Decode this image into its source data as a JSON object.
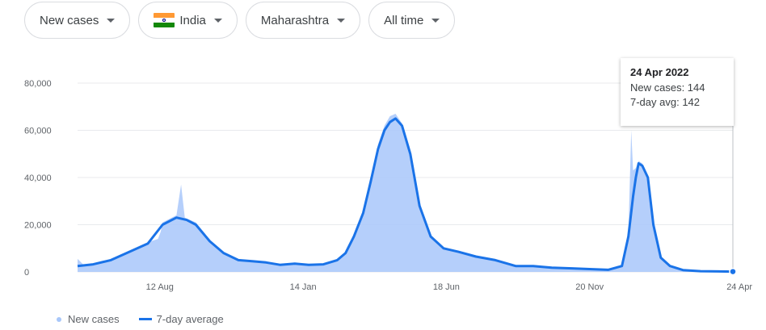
{
  "filters": {
    "metric": "New cases",
    "country": "India",
    "region": "Maharashtra",
    "period": "All time"
  },
  "colors": {
    "area": "#a8c7fa",
    "line": "#1a73e8",
    "grid": "#e8eaed",
    "axis_text": "#5f6368"
  },
  "tooltip": {
    "date": "24 Apr 2022",
    "new_cases_text": "New cases: 144",
    "avg_text": "7-day avg: 142"
  },
  "legend": {
    "new_cases": "New cases",
    "avg": "7-day average"
  },
  "chart_data": {
    "type": "area",
    "title": "",
    "xlabel": "",
    "ylabel": "",
    "ylim": [
      0,
      80000
    ],
    "y_ticks": [
      0,
      20000,
      40000,
      60000,
      80000
    ],
    "y_tick_labels": [
      "0",
      "20,000",
      "40,000",
      "60,000",
      "80,000"
    ],
    "x_ticks": [
      "2020-08-12",
      "2021-01-14",
      "2021-06-18",
      "2021-11-20",
      "2022-04-24"
    ],
    "x_tick_labels": [
      "12 Aug",
      "14 Jan",
      "18 Jun",
      "20 Nov",
      "24 Apr"
    ],
    "grid": true,
    "legend_position": "bottom-left",
    "series": [
      {
        "name": "7-day average",
        "x": [
          "2020-05-15",
          "2020-06-01",
          "2020-06-20",
          "2020-07-10",
          "2020-07-30",
          "2020-08-15",
          "2020-08-30",
          "2020-09-10",
          "2020-09-20",
          "2020-10-05",
          "2020-10-20",
          "2020-11-05",
          "2020-11-20",
          "2020-12-05",
          "2020-12-20",
          "2021-01-05",
          "2021-01-20",
          "2021-02-05",
          "2021-02-20",
          "2021-03-01",
          "2021-03-10",
          "2021-03-20",
          "2021-03-28",
          "2021-04-05",
          "2021-04-12",
          "2021-04-18",
          "2021-04-24",
          "2021-05-01",
          "2021-05-10",
          "2021-05-20",
          "2021-06-01",
          "2021-06-15",
          "2021-07-01",
          "2021-07-20",
          "2021-08-10",
          "2021-09-01",
          "2021-09-20",
          "2021-10-10",
          "2021-11-01",
          "2021-11-20",
          "2021-12-10",
          "2021-12-25",
          "2022-01-01",
          "2022-01-06",
          "2022-01-09",
          "2022-01-12",
          "2022-01-16",
          "2022-01-22",
          "2022-01-28",
          "2022-02-05",
          "2022-02-15",
          "2022-03-01",
          "2022-03-20",
          "2022-04-24"
        ],
        "y": [
          2500,
          3200,
          5000,
          8500,
          12000,
          20000,
          23000,
          22000,
          20000,
          13000,
          8000,
          5000,
          4500,
          4000,
          3000,
          3500,
          3000,
          3200,
          5000,
          8000,
          15000,
          25000,
          38000,
          52000,
          60000,
          63500,
          65000,
          62000,
          50000,
          28000,
          15000,
          10000,
          8500,
          6500,
          5000,
          2500,
          2500,
          1800,
          1500,
          1200,
          900,
          2500,
          15000,
          32000,
          40000,
          46000,
          45000,
          40000,
          20000,
          6000,
          2500,
          800,
          300,
          142
        ]
      },
      {
        "name": "New cases",
        "x": [
          "2020-05-15",
          "2020-05-22",
          "2020-06-01",
          "2020-06-20",
          "2020-07-10",
          "2020-07-30",
          "2020-08-10",
          "2020-08-13",
          "2020-08-15",
          "2020-08-30",
          "2020-09-04",
          "2020-09-08",
          "2020-09-20",
          "2020-10-05",
          "2020-10-20",
          "2020-11-05",
          "2020-11-20",
          "2020-12-05",
          "2020-12-20",
          "2021-01-05",
          "2021-01-20",
          "2021-02-05",
          "2021-02-20",
          "2021-03-01",
          "2021-03-10",
          "2021-03-20",
          "2021-03-28",
          "2021-04-05",
          "2021-04-12",
          "2021-04-18",
          "2021-04-24",
          "2021-05-01",
          "2021-05-10",
          "2021-05-20",
          "2021-06-01",
          "2021-06-15",
          "2021-07-01",
          "2021-07-20",
          "2021-08-10",
          "2021-09-01",
          "2021-09-20",
          "2021-10-10",
          "2021-11-01",
          "2021-11-20",
          "2021-12-10",
          "2021-12-25",
          "2022-01-01",
          "2022-01-04",
          "2022-01-06",
          "2022-01-09",
          "2022-01-12",
          "2022-01-16",
          "2022-01-22",
          "2022-01-28",
          "2022-02-05",
          "2022-02-15",
          "2022-03-01",
          "2022-03-20",
          "2022-04-24"
        ],
        "y": [
          5500,
          2800,
          3400,
          5500,
          9000,
          12500,
          14000,
          17000,
          21000,
          24000,
          37000,
          23000,
          21000,
          13500,
          8500,
          5200,
          4700,
          4200,
          3200,
          3800,
          3100,
          3400,
          5300,
          8500,
          16000,
          26000,
          39000,
          54000,
          62000,
          66000,
          67000,
          63000,
          51000,
          29000,
          15500,
          10500,
          9000,
          7000,
          5200,
          2600,
          2600,
          1900,
          1600,
          1300,
          1000,
          2800,
          16000,
          60000,
          43000,
          44000,
          47000,
          46000,
          41000,
          21000,
          6300,
          2600,
          900,
          320,
          144
        ]
      }
    ]
  }
}
